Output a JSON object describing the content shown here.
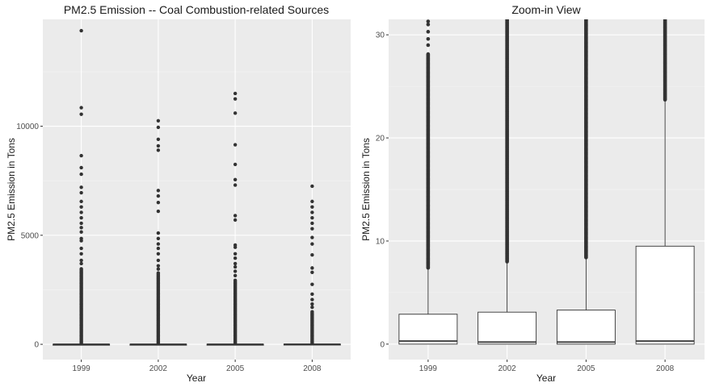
{
  "chart_data": [
    {
      "type": "box",
      "title": "PM2.5 Emission -- Coal Combustion-related Sources",
      "xlabel": "Year",
      "ylabel": "PM2.5 Emission in Tons",
      "categories": [
        "1999",
        "2002",
        "2005",
        "2008"
      ],
      "ylim": [
        -700,
        14900
      ],
      "yticks": [
        0,
        5000,
        10000
      ],
      "ytick_labels": [
        "0",
        "5000",
        "10000"
      ],
      "grid": true,
      "boxes": [
        {
          "category": "1999",
          "q1": 0,
          "median": 0.3,
          "q3": 2.9
        },
        {
          "category": "2002",
          "q1": 0,
          "median": 0.2,
          "q3": 3.1
        },
        {
          "category": "2005",
          "q1": 0,
          "median": 0.2,
          "q3": 3.3
        },
        {
          "category": "2008",
          "q1": 0,
          "median": 0.3,
          "q3": 9.5
        }
      ],
      "outliers": [
        {
          "category": "1999",
          "dense_from": 50,
          "dense_to": 3500,
          "values": [
            14380,
            10850,
            10550,
            8650,
            8100,
            7800,
            7200,
            6950,
            6550,
            6300,
            6050,
            5800,
            5550,
            5350,
            5150,
            4850,
            4750,
            4400,
            4150,
            3850,
            3700
          ]
        },
        {
          "category": "2002",
          "dense_from": 50,
          "dense_to": 3300,
          "values": [
            10250,
            9950,
            9400,
            9100,
            8900,
            7050,
            6800,
            6500,
            6100,
            5100,
            4850,
            4600,
            4400,
            4150,
            3850,
            3600,
            3450
          ]
        },
        {
          "category": "2005",
          "dense_from": 50,
          "dense_to": 2950,
          "values": [
            11500,
            11250,
            10600,
            9150,
            8250,
            7550,
            7300,
            5900,
            5700,
            4550,
            4450,
            4150,
            3950,
            3700,
            3550,
            3350,
            3150
          ]
        },
        {
          "category": "2008",
          "dense_from": 50,
          "dense_to": 1500,
          "values": [
            7250,
            6550,
            6300,
            6050,
            5800,
            5550,
            5300,
            4900,
            4600,
            4100,
            3500,
            3300,
            2750,
            2300,
            2050,
            1850,
            1700
          ]
        }
      ]
    },
    {
      "type": "box",
      "title": "Zoom-in View",
      "xlabel": "Year",
      "ylabel": "PM2.5 Emission in Tons",
      "categories": [
        "1999",
        "2002",
        "2005",
        "2008"
      ],
      "ylim": [
        -1.5,
        31.5
      ],
      "yticks": [
        0,
        10,
        20,
        30
      ],
      "ytick_labels": [
        "0",
        "10",
        "20",
        "30"
      ],
      "grid": true,
      "boxes": [
        {
          "category": "1999",
          "q1": 0,
          "median": 0.3,
          "q3": 2.9,
          "whisker_high": 7.3
        },
        {
          "category": "2002",
          "q1": 0,
          "median": 0.2,
          "q3": 3.1,
          "whisker_high": 7.9
        },
        {
          "category": "2005",
          "q1": 0,
          "median": 0.2,
          "q3": 3.3,
          "whisker_high": 8.3
        },
        {
          "category": "2008",
          "q1": 0,
          "median": 0.3,
          "q3": 9.5,
          "whisker_high": 23.6
        }
      ],
      "outliers": [
        {
          "category": "1999",
          "dense_from": 7.4,
          "dense_to": 28.2,
          "values": [
            29.0,
            29.6,
            30.3,
            31.0,
            31.3
          ]
        },
        {
          "category": "2002",
          "dense_from": 8.0,
          "dense_to": 31.5,
          "values": []
        },
        {
          "category": "2005",
          "dense_from": 8.4,
          "dense_to": 31.5,
          "values": []
        },
        {
          "category": "2008",
          "dense_from": 23.7,
          "dense_to": 31.5,
          "values": []
        }
      ]
    }
  ]
}
